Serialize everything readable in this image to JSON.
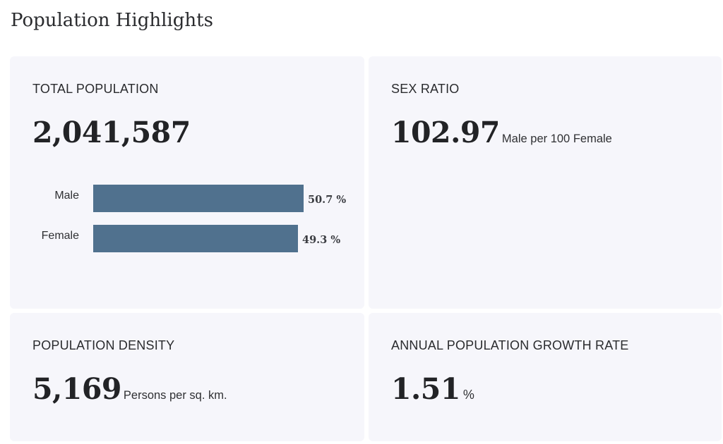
{
  "page": {
    "title": "Population Highlights"
  },
  "cards": {
    "total_population": {
      "label": "TOTAL POPULATION",
      "value": "2,041,587"
    },
    "sex_ratio": {
      "label": "SEX RATIO",
      "value": "102.97",
      "unit": "Male per 100 Female"
    },
    "population_density": {
      "label": "POPULATION DENSITY",
      "value": "5,169",
      "unit": "Persons per sq. km."
    },
    "growth_rate": {
      "label": "ANNUAL POPULATION GROWTH RATE",
      "value": "1.51",
      "unit": "%"
    }
  },
  "chart_data": {
    "type": "bar",
    "orientation": "horizontal",
    "categories": [
      "Male",
      "Female"
    ],
    "values": [
      50.7,
      49.3
    ],
    "value_labels": [
      "50.7 %",
      "49.3 %"
    ],
    "xlim": [
      0,
      50.7
    ],
    "title": "",
    "xlabel": "",
    "ylabel": "",
    "grid": false,
    "colors": {
      "bar": "#50718e"
    }
  },
  "colors": {
    "card_background": "#f6f6fb",
    "bar": "#50718e",
    "text": "#222326"
  }
}
